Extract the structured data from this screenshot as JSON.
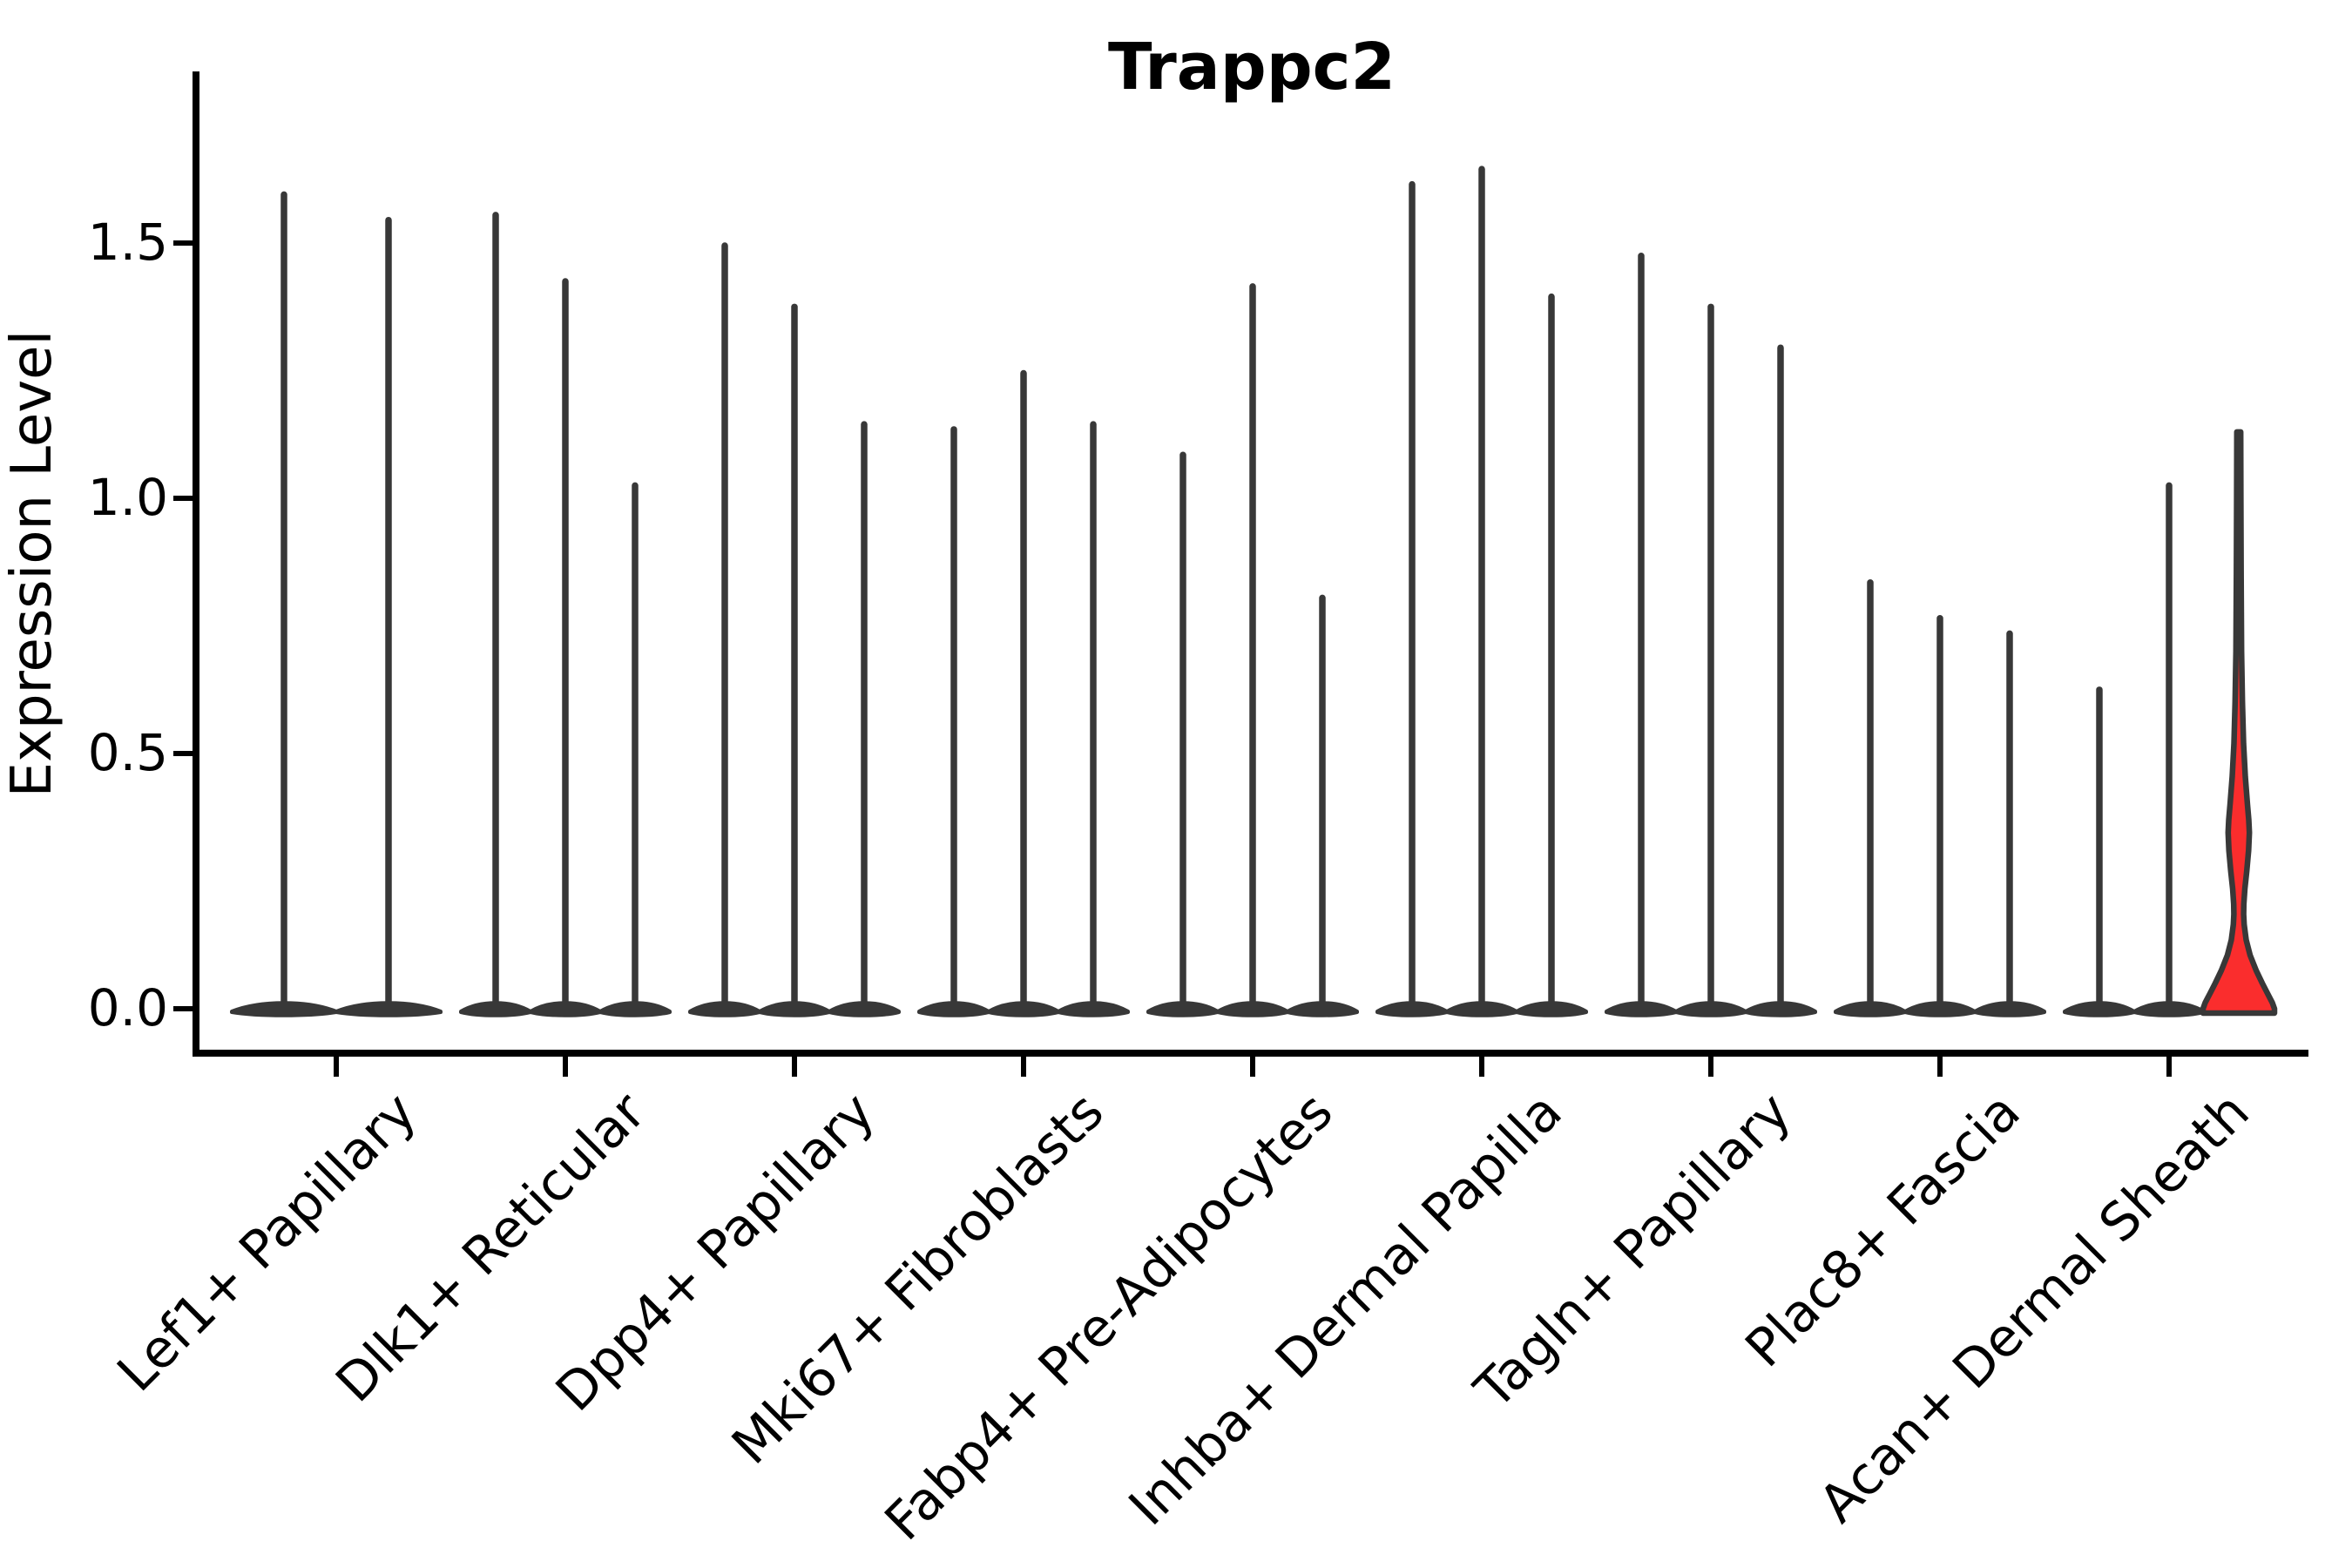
{
  "page": {
    "background": "#ffffff"
  },
  "chart_data": {
    "type": "violin",
    "title": "Trappc2",
    "ylabel": "Expression Level",
    "xlabel": "",
    "yticks": [
      "0.0",
      "0.5",
      "1.0",
      "1.5"
    ],
    "ytick_values": [
      0.0,
      0.5,
      1.0,
      1.5
    ],
    "ylim": [
      -0.09,
      1.83
    ],
    "grid": false,
    "legend": null,
    "categories": [
      "Lef1+ Papillary",
      "Dlk1+ Reticular",
      "Dpp4+ Papillary",
      "Mki67+ Fibroblasts",
      "Fabp4+ Pre-Adipocytes",
      "Inhba+ Dermal Papilla",
      "Tagln+ Papillary",
      "Plac8+ Fascia",
      "Acan+ Dermal Sheath"
    ],
    "series": [
      {
        "category": "Lef1+ Papillary",
        "violin_maxima": [
          1.6,
          1.55
        ]
      },
      {
        "category": "Dlk1+ Reticular",
        "violin_maxima": [
          1.56,
          1.43,
          1.03
        ]
      },
      {
        "category": "Dpp4+ Papillary",
        "violin_maxima": [
          1.5,
          1.38,
          1.15
        ]
      },
      {
        "category": "Mki67+ Fibroblasts",
        "violin_maxima": [
          1.14,
          1.25,
          1.15
        ]
      },
      {
        "category": "Fabp4+ Pre-Adipocytes",
        "violin_maxima": [
          1.09,
          1.42,
          0.81
        ]
      },
      {
        "category": "Inhba+ Dermal Papilla",
        "violin_maxima": [
          1.62,
          1.65,
          1.4
        ]
      },
      {
        "category": "Tagln+ Papillary",
        "violin_maxima": [
          1.48,
          1.38,
          1.3
        ]
      },
      {
        "category": "Plac8+ Fascia",
        "violin_maxima": [
          0.84,
          0.77,
          0.74
        ]
      },
      {
        "category": "Acan+ Dermal Sheath",
        "violin_maxima": [
          0.63,
          1.03,
          1.13
        ]
      }
    ],
    "highlight": {
      "category": "Acan+ Dermal Sheath",
      "violin_index": 2,
      "max": 1.13,
      "fill_color": "#fa2d2d",
      "profile_v_halfwidth": [
        [
          1.13,
          2.2
        ],
        [
          1.0,
          2.4
        ],
        [
          0.85,
          2.7
        ],
        [
          0.7,
          3.2
        ],
        [
          0.6,
          4.2
        ],
        [
          0.52,
          5.5
        ],
        [
          0.455,
          7.5
        ],
        [
          0.4,
          10.0
        ],
        [
          0.37,
          11.5
        ],
        [
          0.345,
          12.2
        ],
        [
          0.31,
          11.3
        ],
        [
          0.27,
          9.2
        ],
        [
          0.235,
          7.0
        ],
        [
          0.205,
          5.8
        ],
        [
          0.185,
          5.6
        ],
        [
          0.165,
          6.2
        ],
        [
          0.135,
          8.5
        ],
        [
          0.105,
          13.0
        ],
        [
          0.075,
          20.0
        ],
        [
          0.05,
          27.0
        ],
        [
          0.03,
          33.0
        ],
        [
          0.012,
          38.5
        ],
        [
          0.0,
          41.0
        ]
      ]
    },
    "style": {
      "violin_stroke": "#383838",
      "violin_fill": "#383838",
      "axis_color": "#000000",
      "background": "#ffffff"
    }
  }
}
